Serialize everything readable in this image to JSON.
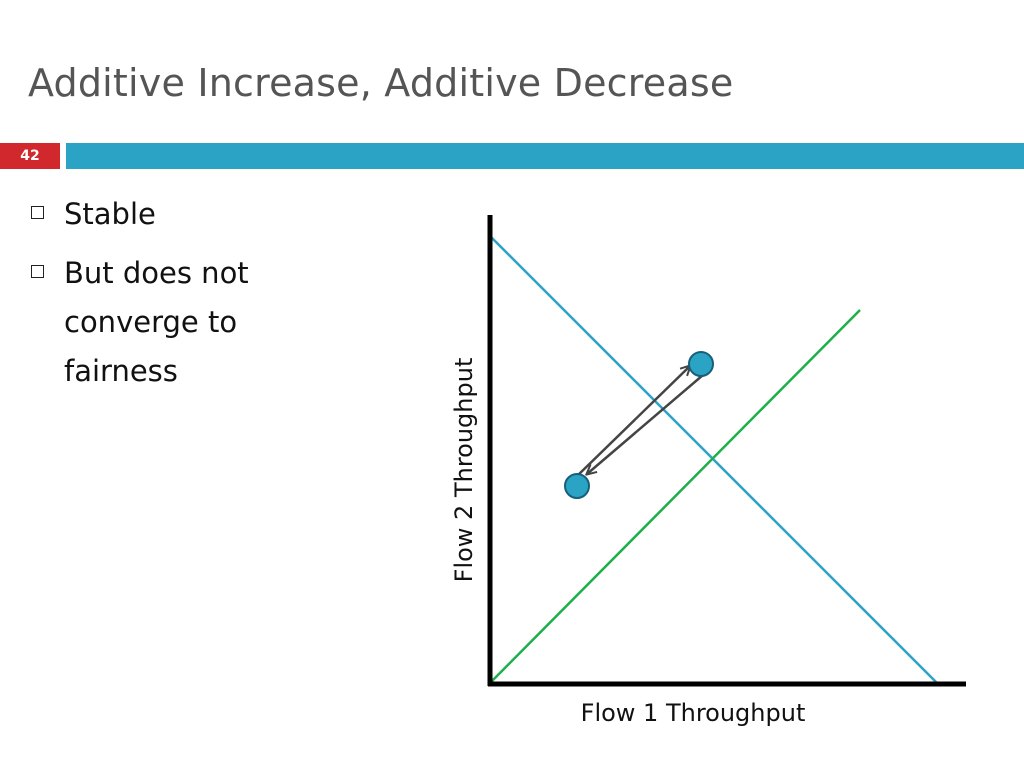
{
  "slide": {
    "title": "Additive Increase, Additive Decrease",
    "number": "42",
    "accent_color": "#2ba3c4",
    "number_badge_color": "#d1282e"
  },
  "bullets": [
    {
      "text": "Stable",
      "marker": "hollow-square-bullet-icon"
    },
    {
      "text": "But does not converge to fairness",
      "marker": "hollow-square-bullet-icon"
    }
  ],
  "diagram": {
    "x_axis_label": "Flow 1 Throughput",
    "y_axis_label": "Flow 2 Throughput",
    "lines": {
      "efficiency_line_color": "#2ba3c4",
      "fairness_line_color": "#1db04a"
    },
    "points_color": "#2ba3c4",
    "arrow_color": "#444444"
  }
}
